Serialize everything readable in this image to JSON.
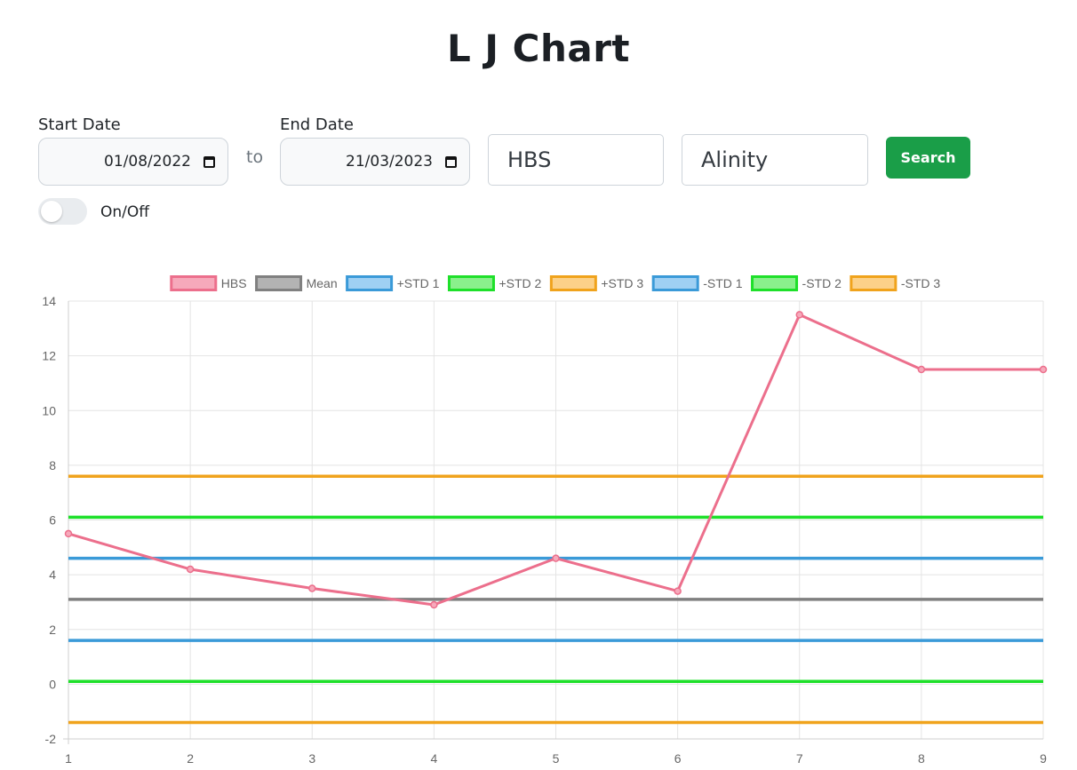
{
  "page": {
    "title": "L J Chart"
  },
  "filters": {
    "start_label": "Start Date",
    "start_value": "01/08/2022",
    "to_label": "to",
    "end_label": "End Date",
    "end_value": "21/03/2023",
    "test_value": "HBS",
    "analyzer_value": "Alinity",
    "search_label": "Search",
    "toggle_label": "On/Off",
    "toggle_on": false
  },
  "chart_data": {
    "type": "line",
    "x": [
      1,
      2,
      3,
      4,
      5,
      6,
      7,
      8,
      9
    ],
    "xlim": [
      1,
      9
    ],
    "ylim": [
      -2,
      14
    ],
    "yticks": [
      -2,
      0,
      2,
      4,
      6,
      8,
      10,
      12,
      14
    ],
    "grid": true,
    "legend_position": "top",
    "series": [
      {
        "name": "HBS",
        "values": [
          5.5,
          4.2,
          3.5,
          2.9,
          4.6,
          3.4,
          13.5,
          11.5,
          11.5
        ],
        "color": "#ec6f8c",
        "fill": "#f6a9bb",
        "points": true
      },
      {
        "name": "Mean",
        "values": [
          3.1,
          3.1,
          3.1,
          3.1,
          3.1,
          3.1,
          3.1,
          3.1,
          3.1
        ],
        "color": "#808080",
        "fill": "#b3b3b3",
        "points": false
      },
      {
        "name": "+STD 1",
        "values": [
          4.6,
          4.6,
          4.6,
          4.6,
          4.6,
          4.6,
          4.6,
          4.6,
          4.6
        ],
        "color": "#3a9ad8",
        "fill": "#9fd0f3",
        "points": false
      },
      {
        "name": "+STD 2",
        "values": [
          6.1,
          6.1,
          6.1,
          6.1,
          6.1,
          6.1,
          6.1,
          6.1,
          6.1
        ],
        "color": "#1ee02a",
        "fill": "#8af08c",
        "points": false
      },
      {
        "name": "+STD 3",
        "values": [
          7.6,
          7.6,
          7.6,
          7.6,
          7.6,
          7.6,
          7.6,
          7.6,
          7.6
        ],
        "color": "#f0a31c",
        "fill": "#fcd189",
        "points": false
      },
      {
        "name": "-STD 1",
        "values": [
          1.6,
          1.6,
          1.6,
          1.6,
          1.6,
          1.6,
          1.6,
          1.6,
          1.6
        ],
        "color": "#3a9ad8",
        "fill": "#9fd0f3",
        "points": false
      },
      {
        "name": "-STD 2",
        "values": [
          0.1,
          0.1,
          0.1,
          0.1,
          0.1,
          0.1,
          0.1,
          0.1,
          0.1
        ],
        "color": "#1ee02a",
        "fill": "#8af08c",
        "points": false
      },
      {
        "name": "-STD 3",
        "values": [
          -1.4,
          -1.4,
          -1.4,
          -1.4,
          -1.4,
          -1.4,
          -1.4,
          -1.4,
          -1.4
        ],
        "color": "#f0a31c",
        "fill": "#fcd189",
        "points": false
      }
    ]
  }
}
